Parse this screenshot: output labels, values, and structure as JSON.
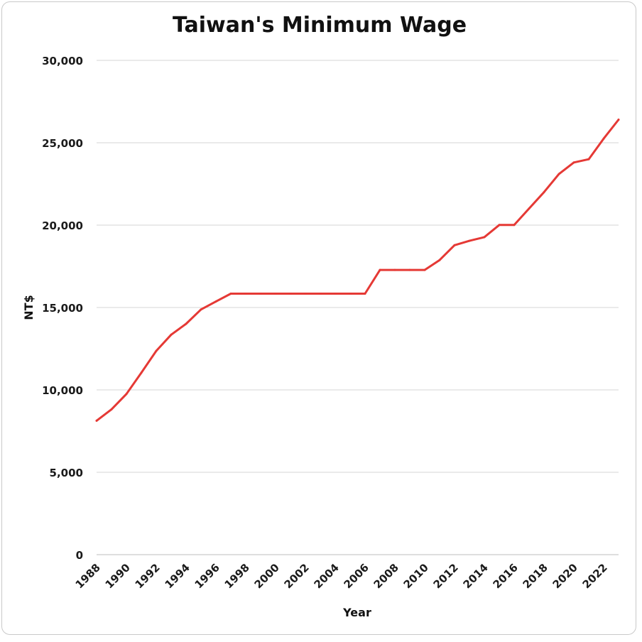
{
  "chart_data": {
    "type": "line",
    "title": "Taiwan's Minimum Wage",
    "xlabel": "Year",
    "ylabel": "NT$",
    "ylim": [
      0,
      30000
    ],
    "xlim": [
      1988,
      2023
    ],
    "y_ticks": [
      "0",
      "5,000",
      "10,000",
      "15,000",
      "20,000",
      "25,000",
      "30,000"
    ],
    "x_ticks": [
      "1988",
      "1990",
      "1992",
      "1994",
      "1996",
      "1998",
      "2000",
      "2002",
      "2004",
      "2006",
      "2008",
      "2010",
      "2012",
      "2014",
      "2016",
      "2018",
      "2020",
      "2022"
    ],
    "grid": "horizontal",
    "legend": "none",
    "line_color": "#e53935",
    "series": [
      {
        "x": [
          1988,
          1989,
          1990,
          1991,
          1992,
          1993,
          1994,
          1995,
          1996,
          1997,
          1998,
          1999,
          2000,
          2001,
          2002,
          2003,
          2004,
          2005,
          2006,
          2007,
          2008,
          2009,
          2010,
          2011,
          2012,
          2013,
          2014,
          2015,
          2016,
          2017,
          2018,
          2019,
          2020,
          2021,
          2022,
          2023
        ],
        "values": [
          8130,
          8820,
          9750,
          11040,
          12365,
          13350,
          14010,
          14880,
          15360,
          15840,
          15840,
          15840,
          15840,
          15840,
          15840,
          15840,
          15840,
          15840,
          15840,
          17280,
          17280,
          17280,
          17280,
          17880,
          18780,
          19047,
          19273,
          20008,
          20008,
          21009,
          22000,
          23100,
          23800,
          24000,
          25250,
          26400
        ]
      }
    ]
  }
}
